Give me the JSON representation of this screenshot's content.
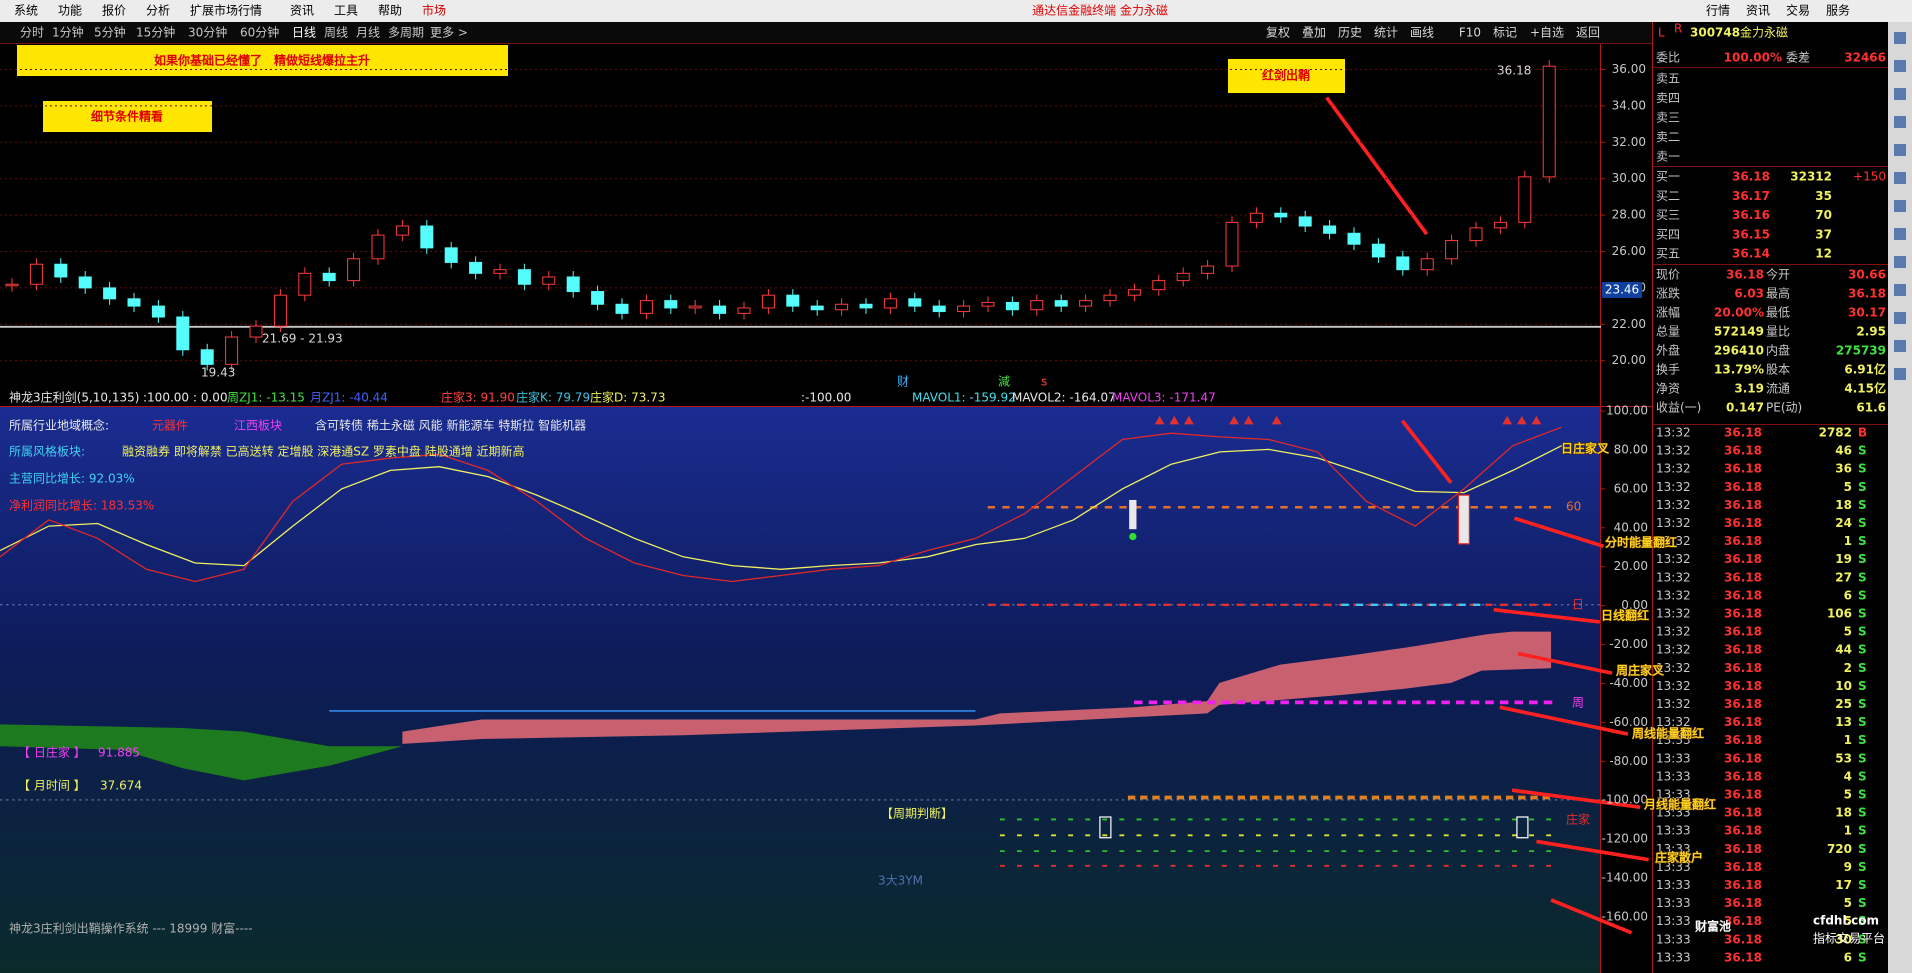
{
  "title_bar": {
    "menu": [
      "系统",
      "功能",
      "报价",
      "分析",
      "扩展市场行情",
      "资讯",
      "工具",
      "帮助",
      "市场"
    ],
    "app_title": "通达信金融终端 金力永磁",
    "right_menu": [
      "行情",
      "资讯",
      "交易",
      "服务"
    ]
  },
  "toolbar": {
    "periods": [
      "分时",
      "1分钟",
      "5分钟",
      "15分钟",
      "30分钟",
      "60分钟",
      "日线",
      "周线",
      "月线",
      "多周期",
      "更多 >"
    ],
    "tools": [
      "复权",
      "叠加",
      "历史",
      "统计",
      "画线",
      "F10",
      "标记",
      "+自选",
      "返回"
    ]
  },
  "main_chart": {
    "type": "candlestick",
    "closes": [
      24.2,
      25.3,
      24.6,
      24.0,
      23.4,
      23.0,
      22.4,
      20.6,
      19.8,
      21.3,
      21.9,
      23.6,
      24.8,
      24.4,
      25.6,
      26.9,
      27.4,
      26.2,
      25.4,
      24.8,
      25.0,
      24.2,
      24.6,
      23.8,
      23.1,
      22.6,
      23.3,
      22.9,
      23.0,
      22.6,
      22.9,
      23.6,
      23.0,
      22.8,
      23.1,
      22.9,
      23.4,
      23.0,
      22.7,
      23.0,
      23.2,
      22.8,
      23.3,
      23.0,
      23.3,
      23.6,
      23.9,
      24.4,
      24.8,
      25.2,
      27.6,
      28.1,
      27.9,
      27.4,
      27.0,
      26.4,
      25.7,
      25.0,
      25.6,
      26.6,
      27.3,
      27.6,
      30.1,
      36.18
    ],
    "ylim": [
      18.5,
      37.4
    ],
    "yticks": [
      {
        "value": 36,
        "label": "36.00"
      },
      {
        "value": 34,
        "label": "34.00"
      },
      {
        "value": 32,
        "label": "32.00"
      },
      {
        "value": 30,
        "label": "30.00"
      },
      {
        "value": 28,
        "label": "28.00"
      },
      {
        "value": 26,
        "label": "26.00"
      },
      {
        "value": 24,
        "label": "24.00"
      },
      {
        "value": 22,
        "label": "22.00"
      },
      {
        "value": 20,
        "label": "20.00"
      }
    ],
    "grid": true,
    "last_price_label": "23.46",
    "annotations": [
      "如果你基础已经懂了　精做短线爆拉主升",
      "细节条件精看",
      "红剑出鞘"
    ],
    "price_labels": [
      "36.18",
      "21.69 - 21.93",
      "19.43"
    ],
    "markers": [
      "财",
      "減",
      "s"
    ]
  },
  "indicator": {
    "header": [
      "神龙3庄利剑(5,10,135)",
      ":100.00",
      ": 0.00",
      "周ZJ1: -13.15",
      "月ZJ1: -40.44",
      "庄家3: 91.90",
      "庄家K: 79.79",
      "庄家D: 73.73",
      ":-100.00",
      "MAVOL1: -159.92",
      "MAVOL2: -164.07",
      "MAVOL3: -171.47"
    ],
    "ylim": [
      -188.8,
      102.6
    ],
    "yticks": [
      {
        "value": 100,
        "label": "100.00"
      },
      {
        "value": 80,
        "label": "80.00"
      },
      {
        "value": 60,
        "label": "60.00"
      },
      {
        "value": 40,
        "label": "40.00"
      },
      {
        "value": 20,
        "label": "20.00"
      },
      {
        "value": 0,
        "label": "0.00"
      },
      {
        "value": -20,
        "label": "-20.00"
      },
      {
        "value": -40,
        "label": "-40.00"
      },
      {
        "value": -60,
        "label": "-60.00"
      },
      {
        "value": -80,
        "label": "-80.00"
      },
      {
        "value": -100,
        "label": "-100.00"
      },
      {
        "value": -120,
        "label": "-120.00"
      },
      {
        "value": -140,
        "label": "-140.00"
      },
      {
        "value": -160,
        "label": "-160.00"
      }
    ],
    "lines": [
      {
        "color": "#f0f060",
        "values": [
          28.3,
          40.9,
          42.2,
          31.4,
          21.9,
          20.6,
          40.9,
          60.0,
          69.5,
          71.4,
          66.3,
          56.8,
          46.0,
          34.6,
          25.1,
          20.6,
          18.7,
          20.6,
          21.9,
          25.1,
          31.4,
          34.6,
          44.1,
          60.0,
          72.7,
          79.0,
          80.3,
          75.9,
          67.6,
          58.7,
          58.1,
          69.5,
          82.2
        ]
      },
      {
        "color": "#e02828",
        "values": [
          25.1,
          44.1,
          34.6,
          18.7,
          12.4,
          18.7,
          53.6,
          72.7,
          75.9,
          77.8,
          69.5,
          53.6,
          34.6,
          21.9,
          15.5,
          12.4,
          15.5,
          18.7,
          20.6,
          28.3,
          34.6,
          47.3,
          66.3,
          85.4,
          88.6,
          86.7,
          85.4,
          79.0,
          53.6,
          40.9,
          60.0,
          82.2,
          91.7
        ]
      }
    ],
    "info": {
      "industry_label": "所属行业地域概念:",
      "industry": "元器件",
      "region": "江西板块",
      "concepts": "含可转债 稀土永磁 风能 新能源车 特斯拉 智能机器",
      "style_label": "所属风格板块:",
      "styles": "融资融券 即将解禁 已高送转 定增股 深港通SZ 罗素中盘 陆股通增 近期新高",
      "revenue_growth": "主营同比增长: 92.03%",
      "profit_growth": "净利润同比增长: 183.53%"
    },
    "labels": {
      "day_dealer": "【 日庄家 】",
      "day_dealer_value": "91.885",
      "month_time": "【 月时间 】",
      "month_time_value": "37.674",
      "cycle": "【周期判断】",
      "ym": "3大3YM",
      "footer": "神龙3庄利剑出鞘操作系统 --- 18999 财富----",
      "l60": "60",
      "lday": "日",
      "lweek": "周",
      "ldealer": "庄家"
    },
    "callouts": [
      "日庄家叉",
      "分时能量翻红",
      "日线翻红",
      "周庄家叉",
      "周线能量翻红",
      "月线能量翻红",
      "庄家散户"
    ]
  },
  "quote_panel": {
    "flags": [
      "L",
      "R"
    ],
    "code": "300748",
    "name": "金力永磁",
    "ratio_label": "委比",
    "ratio": "100.00%",
    "diff_label": "委差",
    "diff": "32466",
    "sells": [
      "卖五",
      "卖四",
      "卖三",
      "卖二",
      "卖一"
    ],
    "buys": [
      [
        "买一",
        "36.18",
        "32312",
        "+150"
      ],
      [
        "买二",
        "36.17",
        "35"
      ],
      [
        "买三",
        "36.16",
        "70"
      ],
      [
        "买四",
        "36.15",
        "37"
      ],
      [
        "买五",
        "36.14",
        "12"
      ]
    ],
    "stats": [
      [
        "现价",
        "36.18",
        "今开",
        "30.66"
      ],
      [
        "涨跌",
        "6.03",
        "最高",
        "36.18"
      ],
      [
        "涨幅",
        "20.00%",
        "最低",
        "30.17"
      ],
      [
        "总量",
        "572149",
        "量比",
        "2.95"
      ],
      [
        "外盘",
        "296410",
        "内盘",
        "275739"
      ],
      [
        "换手",
        "13.79%",
        "股本",
        "6.91亿"
      ],
      [
        "净资",
        "3.19",
        "流通",
        "4.15亿"
      ],
      [
        "收益(一)",
        "0.147",
        "PE(动)",
        "61.6"
      ]
    ],
    "ticks": [
      [
        "13:32",
        "36.18",
        "2782",
        "B"
      ],
      [
        "13:32",
        "36.18",
        "46",
        "S"
      ],
      [
        "13:32",
        "36.18",
        "36",
        "S"
      ],
      [
        "13:32",
        "36.18",
        "5",
        "S"
      ],
      [
        "13:32",
        "36.18",
        "18",
        "S"
      ],
      [
        "13:32",
        "36.18",
        "24",
        "S"
      ],
      [
        "13:32",
        "36.18",
        "1",
        "S"
      ],
      [
        "13:32",
        "36.18",
        "19",
        "S"
      ],
      [
        "13:32",
        "36.18",
        "27",
        "S"
      ],
      [
        "13:32",
        "36.18",
        "6",
        "S"
      ],
      [
        "13:32",
        "36.18",
        "106",
        "S"
      ],
      [
        "13:32",
        "36.18",
        "5",
        "S"
      ],
      [
        "13:32",
        "36.18",
        "44",
        "S"
      ],
      [
        "13:32",
        "36.18",
        "2",
        "S"
      ],
      [
        "13:32",
        "36.18",
        "10",
        "S"
      ],
      [
        "13:32",
        "36.18",
        "25",
        "S"
      ],
      [
        "13:32",
        "36.18",
        "13",
        "S"
      ],
      [
        "13:33",
        "36.18",
        "1",
        "S"
      ],
      [
        "13:33",
        "36.18",
        "53",
        "S"
      ],
      [
        "13:33",
        "36.18",
        "4",
        "S"
      ],
      [
        "13:33",
        "36.18",
        "5",
        "S"
      ],
      [
        "13:33",
        "36.18",
        "18",
        "S"
      ],
      [
        "13:33",
        "36.18",
        "1",
        "S"
      ],
      [
        "13:33",
        "36.18",
        "720",
        "S"
      ],
      [
        "13:33",
        "36.18",
        "9",
        "S"
      ],
      [
        "13:33",
        "36.18",
        "17",
        "S"
      ],
      [
        "13:33",
        "36.18",
        "5",
        "S"
      ],
      [
        "13:33",
        "36.18",
        "5",
        "S"
      ],
      [
        "13:33",
        "36.18",
        "30",
        "S"
      ],
      [
        "13:33",
        "36.18",
        "6",
        "S"
      ]
    ],
    "watermark": [
      "财富池",
      "cfdhl.com",
      "指标交易平台"
    ]
  }
}
